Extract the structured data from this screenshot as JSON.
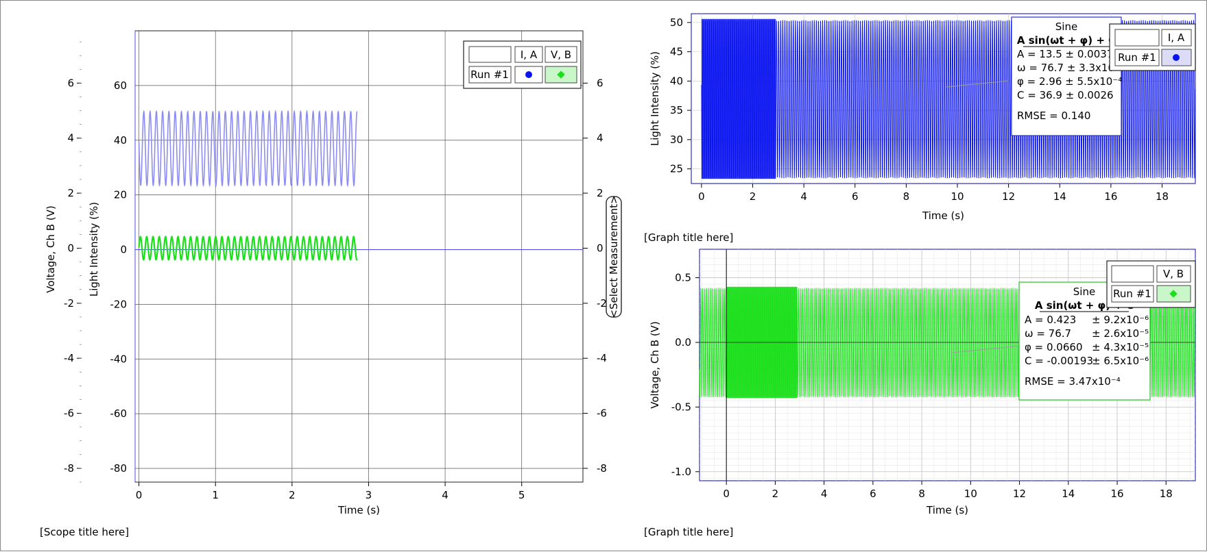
{
  "scope": {
    "title": "[Scope title here]",
    "left_axis_label": "Voltage, Ch B (V)",
    "left_ticks": [
      6,
      4,
      2,
      0,
      -2,
      -4,
      -6,
      -8
    ],
    "inner_axis_label": "Light Intensity (%)",
    "inner_ticks": [
      60,
      40,
      20,
      0,
      -20,
      -40,
      -60,
      -80
    ],
    "right_ticks": [
      6,
      4,
      2,
      0,
      -2,
      -4,
      -6,
      -8
    ],
    "select_measurement": "<Select Measurement>",
    "x_label": "Time (s)",
    "x_ticks": [
      0,
      1,
      2,
      3,
      4,
      5
    ],
    "legend": {
      "run": "Run #1",
      "col_a": "I, A",
      "col_b": "V, B"
    }
  },
  "graph1": {
    "x_label": "Time (s)",
    "y_label": "Light Intensity (%)",
    "x_ticks": [
      0,
      2,
      4,
      6,
      8,
      10,
      12,
      14,
      16,
      18
    ],
    "y_ticks": [
      25,
      30,
      35,
      40,
      45,
      50
    ],
    "fit": {
      "name": "Sine",
      "formula": "A sin(ωt + φ) + C",
      "lines": [
        "A = 13.5 ± 0.0037",
        "ω = 76.7 ± 3.3x10⁻⁴",
        "φ = 2.96 ± 5.5x10⁻⁴",
        "C = 36.9 ± 0.0026"
      ],
      "rmse": "RMSE = 0.140"
    },
    "legend": {
      "run": "Run #1",
      "col": "I, A"
    }
  },
  "graph2": {
    "title_top": "[Graph title here]",
    "title_bottom": "[Graph title here]",
    "x_label": "Time (s)",
    "y_label": "Voltage, Ch B (V)",
    "x_ticks": [
      0,
      2,
      4,
      6,
      8,
      10,
      12,
      14,
      16,
      18
    ],
    "y_ticks": [
      "0.5",
      "0.0",
      "-0.5",
      "-1.0"
    ],
    "fit": {
      "name": "Sine",
      "formula": "A sin(ωt + φ) + C",
      "lines": [
        {
          "k": "A  = 0.423",
          "v": "± 9.2x10⁻⁶"
        },
        {
          "k": "ω  = 76.7",
          "v": "± 2.6x10⁻⁵"
        },
        {
          "k": "φ  = 0.0660",
          "v": "± 4.3x10⁻⁵"
        },
        {
          "k": "C  = -0.00193",
          "v": "± 6.5x10⁻⁶"
        }
      ],
      "rmse": "RMSE = 3.47x10⁻⁴"
    },
    "legend": {
      "run": "Run #1",
      "col": "V, B"
    }
  },
  "colors": {
    "blue": "#0a14f0",
    "blue_light": "#8c8cf2",
    "green": "#1adf1a",
    "green_fill": "#c9f7c9",
    "fit_border_blue": "#2430c8",
    "fit_border_green": "#23c423"
  },
  "chart_data": [
    {
      "type": "line",
      "title": "",
      "xlabel": "Time (s)",
      "ylabel": "Light Intensity (%)",
      "xlim": [
        -0.05,
        5.8
      ],
      "ylim": [
        -85,
        80
      ],
      "grid": true,
      "legend": "top-right",
      "series": [
        {
          "name": "I, A",
          "color": "#8c8cf2",
          "x_range": [
            0,
            2.85
          ],
          "offset": 37.0,
          "amplitude": 13.5,
          "omega": 76.7,
          "phase": 2.96
        },
        {
          "name": "V, B",
          "color": "#1adf1a",
          "axis": "Voltage, Ch B (V)",
          "x_range": [
            0,
            2.85
          ],
          "offset": 0,
          "amplitude": 0.42,
          "omega": 76.7,
          "phase": 0.066
        }
      ]
    },
    {
      "type": "line",
      "title": "",
      "xlabel": "Time (s)",
      "ylabel": "Light Intensity (%)",
      "xlim": [
        -0.4,
        19.3
      ],
      "ylim": [
        22.5,
        51.5
      ],
      "grid": true,
      "legend": "top-right",
      "series": [
        {
          "name": "I, A",
          "color": "#0a14f0",
          "x_range": [
            0,
            19.3
          ],
          "offset": 36.9,
          "amplitude": 13.5,
          "omega": 76.7,
          "phase": 2.96
        }
      ]
    },
    {
      "type": "line",
      "title": "",
      "xlabel": "Time (s)",
      "ylabel": "Voltage, Ch B (V)",
      "xlim": [
        -1.1,
        19.2
      ],
      "ylim": [
        -1.07,
        0.72
      ],
      "grid": true,
      "legend": "top-right",
      "series": [
        {
          "name": "V, B",
          "color": "#1adf1a",
          "x_range": [
            -1.1,
            19.2
          ],
          "offset": -0.00193,
          "amplitude": 0.423,
          "omega": 76.7,
          "phase": 0.066
        }
      ]
    }
  ]
}
